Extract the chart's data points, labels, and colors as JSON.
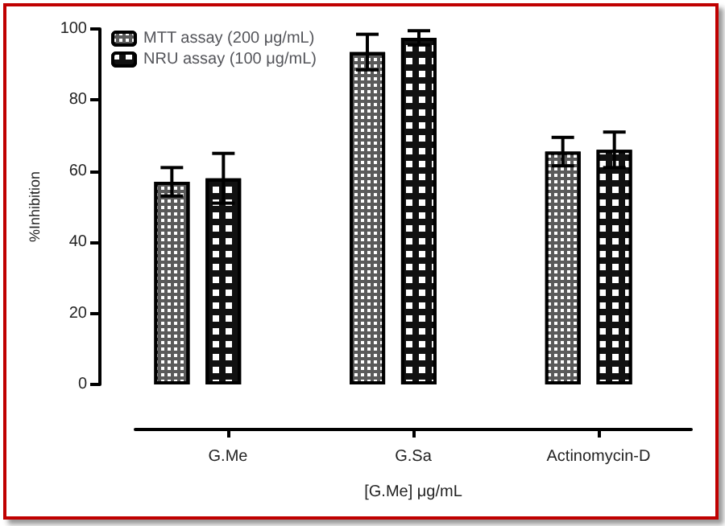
{
  "chart_data": {
    "type": "bar",
    "xlabel": "[G.Me] μg/mL",
    "ylabel": "%Inhibition",
    "categories": [
      "G.Me",
      "G.Sa",
      "Actinomycin-D"
    ],
    "series": [
      {
        "name": "MTT assay (200 μg/mL)",
        "color": "#5a5a5a",
        "values": [
          57,
          93.5,
          65.5
        ],
        "errors": [
          4,
          5,
          4
        ]
      },
      {
        "name": "NRU assay (100 μg/mL)",
        "color": "#111111",
        "values": [
          58,
          97.5,
          66
        ],
        "errors": [
          7,
          2,
          5
        ]
      }
    ],
    "ylim": [
      0,
      100
    ],
    "yticks": [
      0,
      20,
      40,
      60,
      80,
      100
    ],
    "grid": false,
    "legend": "top left"
  }
}
